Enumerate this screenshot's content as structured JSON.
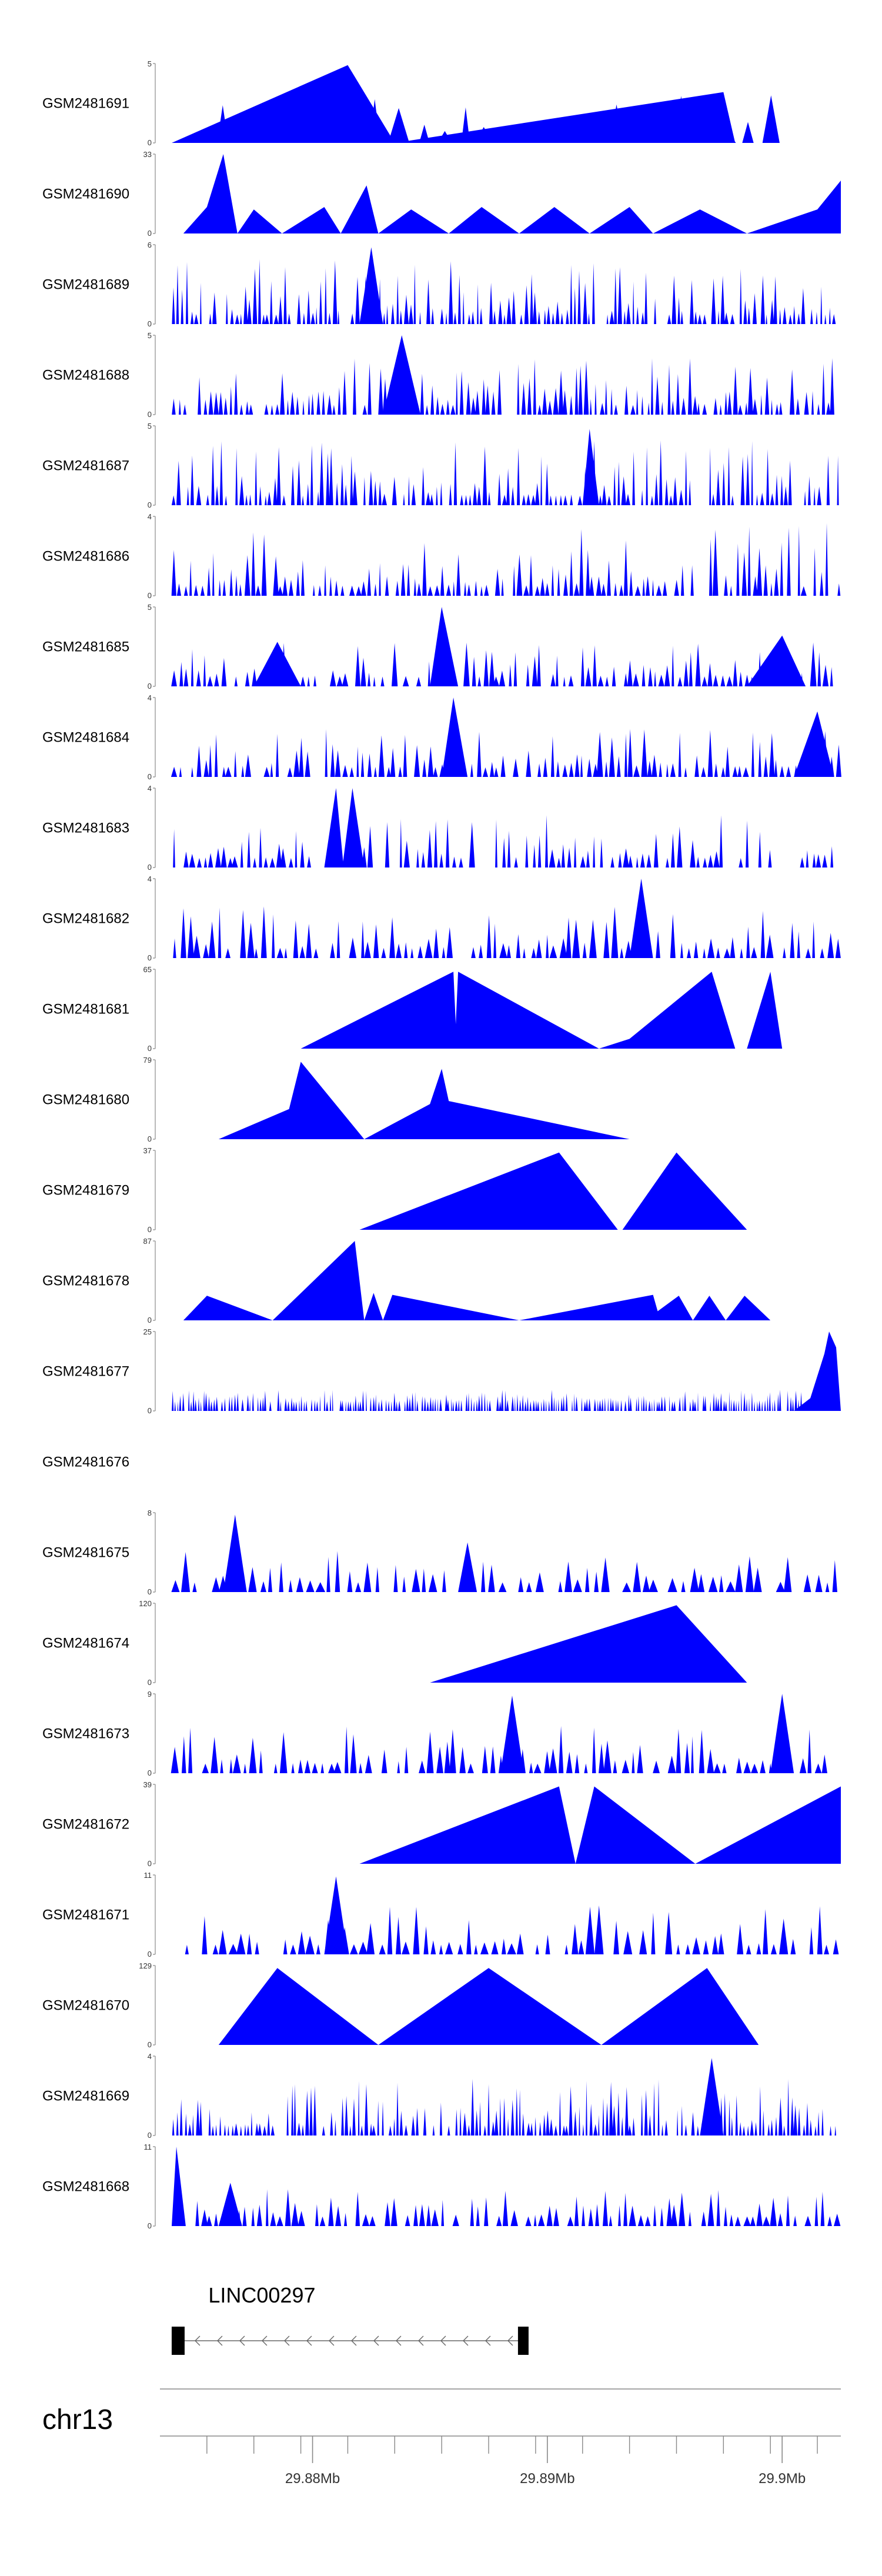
{
  "chart_data": {
    "type": "area",
    "title": "",
    "xlabel": "",
    "ylabel": "",
    "xlim": [
      29.8735,
      29.9025
    ],
    "chromosome": "chr13",
    "color": "#0000ff",
    "tracks": [
      {
        "name": "GSM2481691",
        "ymin": "0",
        "ymax": "5",
        "peak_max": 5,
        "style": "dense",
        "count": 28,
        "seed": 11,
        "hi": 0.6,
        "range": [
          29.874,
          29.9
        ],
        "anchors": [
          [
            29.874,
            0
          ],
          [
            29.8815,
            4.9
          ],
          [
            29.8835,
            0
          ],
          [
            29.8975,
            3.2
          ],
          [
            29.898,
            0
          ],
          [
            29.9,
            0
          ]
        ]
      },
      {
        "name": "GSM2481690",
        "ymin": "0",
        "ymax": "33",
        "peak_max": 33,
        "style": "sparse",
        "count": 0,
        "seed": 12,
        "hi": 0.5,
        "range": [
          29.874,
          29.9025
        ],
        "anchors": [
          [
            29.8745,
            0
          ],
          [
            29.8755,
            11
          ],
          [
            29.8762,
            33
          ],
          [
            29.8768,
            0
          ],
          [
            29.8775,
            10
          ],
          [
            29.8787,
            0
          ],
          [
            29.8805,
            11
          ],
          [
            29.8812,
            0
          ],
          [
            29.8823,
            20
          ],
          [
            29.8828,
            0
          ],
          [
            29.8842,
            10
          ],
          [
            29.8858,
            0
          ],
          [
            29.8872,
            11
          ],
          [
            29.8888,
            0
          ],
          [
            29.8903,
            11
          ],
          [
            29.8918,
            0
          ],
          [
            29.8935,
            11
          ],
          [
            29.8945,
            0
          ],
          [
            29.8965,
            10
          ],
          [
            29.8985,
            0
          ],
          [
            29.9015,
            10
          ],
          [
            29.9025,
            22
          ],
          [
            29.9025,
            0
          ]
        ]
      },
      {
        "name": "GSM2481689",
        "ymin": "0",
        "ymax": "6",
        "peak_max": 6,
        "style": "dense",
        "count": 150,
        "seed": 13,
        "hi": 0.7,
        "range": [
          29.874,
          29.9025
        ],
        "anchors": [
          [
            29.882,
            0
          ],
          [
            29.8825,
            5.8
          ],
          [
            29.883,
            0
          ]
        ]
      },
      {
        "name": "GSM2481688",
        "ymin": "0",
        "ymax": "5",
        "peak_max": 5,
        "style": "dense",
        "count": 130,
        "seed": 14,
        "hi": 0.6,
        "range": [
          29.874,
          29.9025
        ],
        "anchors": [
          [
            29.883,
            0
          ],
          [
            29.8838,
            5
          ],
          [
            29.8846,
            0
          ]
        ]
      },
      {
        "name": "GSM2481687",
        "ymin": "0",
        "ymax": "5",
        "peak_max": 5,
        "style": "dense",
        "count": 140,
        "seed": 15,
        "hi": 0.7,
        "range": [
          29.874,
          29.9025
        ],
        "anchors": [
          [
            29.8915,
            0
          ],
          [
            29.8918,
            4.8
          ],
          [
            29.8922,
            0
          ]
        ]
      },
      {
        "name": "GSM2481686",
        "ymin": "0",
        "ymax": "4",
        "peak_max": 4,
        "style": "dense",
        "count": 120,
        "seed": 16,
        "hi": 0.8,
        "range": [
          29.874,
          29.9025
        ],
        "anchors": []
      },
      {
        "name": "GSM2481685",
        "ymin": "0",
        "ymax": "5",
        "peak_max": 5,
        "style": "dense",
        "count": 110,
        "seed": 17,
        "hi": 0.45,
        "range": [
          29.874,
          29.9025
        ],
        "anchors": [
          [
            29.885,
            0
          ],
          [
            29.8855,
            5
          ],
          [
            29.8862,
            0
          ],
          [
            29.8775,
            0
          ],
          [
            29.8785,
            2.8
          ],
          [
            29.8795,
            0
          ],
          [
            29.8985,
            0
          ],
          [
            29.9,
            3.2
          ],
          [
            29.901,
            0
          ]
        ]
      },
      {
        "name": "GSM2481684",
        "ymin": "0",
        "ymax": "4",
        "peak_max": 4,
        "style": "dense",
        "count": 110,
        "seed": 18,
        "hi": 0.5,
        "range": [
          29.874,
          29.9025
        ],
        "anchors": [
          [
            29.8855,
            0
          ],
          [
            29.886,
            4
          ],
          [
            29.8866,
            0
          ],
          [
            29.9005,
            0
          ],
          [
            29.9015,
            3.3
          ],
          [
            29.9022,
            0
          ]
        ]
      },
      {
        "name": "GSM2481683",
        "ymin": "0",
        "ymax": "4",
        "peak_max": 4,
        "style": "dense",
        "count": 110,
        "seed": 19,
        "hi": 0.55,
        "range": [
          29.874,
          29.9025
        ],
        "anchors": [
          [
            29.8805,
            0
          ],
          [
            29.881,
            4
          ],
          [
            29.8813,
            0.3
          ],
          [
            29.8817,
            4
          ],
          [
            29.8822,
            0
          ]
        ]
      },
      {
        "name": "GSM2481682",
        "ymin": "0",
        "ymax": "4",
        "peak_max": 4,
        "style": "dense",
        "count": 90,
        "seed": 20,
        "hi": 0.55,
        "range": [
          29.874,
          29.9025
        ],
        "anchors": [
          [
            29.8935,
            0
          ],
          [
            29.894,
            4
          ],
          [
            29.8945,
            0
          ]
        ]
      },
      {
        "name": "GSM2481681",
        "ymin": "0",
        "ymax": "65",
        "peak_max": 65,
        "style": "sparse",
        "count": 0,
        "seed": 21,
        "hi": 0.5,
        "range": [
          29.8795,
          29.9
        ],
        "anchors": [
          [
            29.8795,
            0
          ],
          [
            29.886,
            63
          ],
          [
            29.8861,
            20
          ],
          [
            29.8862,
            63
          ],
          [
            29.8922,
            0
          ],
          [
            29.8935,
            8
          ],
          [
            29.897,
            63
          ],
          [
            29.898,
            0
          ],
          [
            29.8985,
            0
          ],
          [
            29.8995,
            63
          ],
          [
            29.9,
            0
          ]
        ]
      },
      {
        "name": "GSM2481680",
        "ymin": "0",
        "ymax": "79",
        "peak_max": 79,
        "style": "sparse",
        "count": 0,
        "seed": 22,
        "hi": 0.5,
        "range": [
          29.876,
          29.8935
        ],
        "anchors": [
          [
            29.876,
            0
          ],
          [
            29.879,
            30
          ],
          [
            29.8795,
            77
          ],
          [
            29.8822,
            0
          ],
          [
            29.885,
            35
          ],
          [
            29.8855,
            70
          ],
          [
            29.8858,
            38
          ],
          [
            29.8935,
            0
          ]
        ]
      },
      {
        "name": "GSM2481679",
        "ymin": "0",
        "ymax": "37",
        "peak_max": 37,
        "style": "sparse",
        "count": 0,
        "seed": 23,
        "hi": 0.5,
        "range": [
          29.882,
          29.8985
        ],
        "anchors": [
          [
            29.882,
            0
          ],
          [
            29.8905,
            36
          ],
          [
            29.893,
            0
          ],
          [
            29.8932,
            0
          ],
          [
            29.8955,
            36
          ],
          [
            29.8985,
            0
          ]
        ]
      },
      {
        "name": "GSM2481678",
        "ymin": "0",
        "ymax": "87",
        "peak_max": 87,
        "style": "sparse",
        "count": 0,
        "seed": 24,
        "hi": 0.5,
        "range": [
          29.8745,
          29.8995
        ],
        "anchors": [
          [
            29.8745,
            0
          ],
          [
            29.8755,
            27
          ],
          [
            29.8783,
            0
          ],
          [
            29.8818,
            87
          ],
          [
            29.8822,
            0
          ],
          [
            29.8826,
            30
          ],
          [
            29.883,
            0
          ],
          [
            29.8834,
            28
          ],
          [
            29.8888,
            0
          ],
          [
            29.8945,
            28
          ],
          [
            29.8947,
            10
          ],
          [
            29.8956,
            27
          ],
          [
            29.8962,
            0
          ],
          [
            29.8969,
            27
          ],
          [
            29.8976,
            0
          ],
          [
            29.8984,
            27
          ],
          [
            29.8995,
            0
          ]
        ]
      },
      {
        "name": "GSM2481677",
        "ymin": "0",
        "ymax": "25",
        "peak_max": 25,
        "style": "dense",
        "count": 260,
        "seed": 25,
        "hi": 0.15,
        "range": [
          29.874,
          29.9025
        ],
        "anchors": [
          [
            29.9005,
            0
          ],
          [
            29.9012,
            4
          ],
          [
            29.9018,
            18
          ],
          [
            29.902,
            25
          ],
          [
            29.9023,
            20
          ],
          [
            29.9025,
            0
          ]
        ]
      },
      {
        "name": "GSM2481676",
        "ymin": "",
        "ymax": "",
        "peak_max": 1,
        "style": "empty",
        "count": 0,
        "seed": 26,
        "hi": 0.5,
        "range": [
          29.874,
          29.9025
        ],
        "anchors": []
      },
      {
        "name": "GSM2481675",
        "ymin": "0",
        "ymax": "8",
        "peak_max": 8,
        "style": "dense",
        "count": 70,
        "seed": 27,
        "hi": 0.4,
        "range": [
          29.874,
          29.9025
        ],
        "anchors": [
          [
            29.8762,
            0
          ],
          [
            29.8767,
            7.8
          ],
          [
            29.8772,
            0
          ],
          [
            29.8862,
            0
          ],
          [
            29.8866,
            5
          ],
          [
            29.887,
            0
          ]
        ]
      },
      {
        "name": "GSM2481674",
        "ymin": "0",
        "ymax": "120",
        "peak_max": 120,
        "style": "sparse",
        "count": 0,
        "seed": 28,
        "hi": 0.5,
        "range": [
          29.885,
          29.8985
        ],
        "anchors": [
          [
            29.885,
            0
          ],
          [
            29.8955,
            117
          ],
          [
            29.8985,
            0
          ]
        ]
      },
      {
        "name": "GSM2481673",
        "ymin": "0",
        "ymax": "9",
        "peak_max": 9,
        "style": "dense",
        "count": 85,
        "seed": 29,
        "hi": 0.5,
        "range": [
          29.874,
          29.902
        ],
        "anchors": [
          [
            29.888,
            0
          ],
          [
            29.8885,
            8.8
          ],
          [
            29.889,
            0
          ],
          [
            29.8995,
            0
          ],
          [
            29.9,
            9
          ],
          [
            29.9005,
            0
          ]
        ]
      },
      {
        "name": "GSM2481672",
        "ymin": "0",
        "ymax": "39",
        "peak_max": 39,
        "style": "sparse",
        "count": 0,
        "seed": 30,
        "hi": 0.5,
        "range": [
          29.882,
          29.9025
        ],
        "anchors": [
          [
            29.882,
            0
          ],
          [
            29.8905,
            38
          ],
          [
            29.8912,
            0
          ],
          [
            29.892,
            38
          ],
          [
            29.8963,
            0
          ],
          [
            29.9025,
            38
          ],
          [
            29.9025,
            0
          ]
        ]
      },
      {
        "name": "GSM2481671",
        "ymin": "0",
        "ymax": "11",
        "peak_max": 11,
        "style": "dense",
        "count": 75,
        "seed": 31,
        "hi": 0.5,
        "range": [
          29.8745,
          29.9025
        ],
        "anchors": [
          [
            29.8805,
            0
          ],
          [
            29.881,
            10.8
          ],
          [
            29.8815,
            0
          ]
        ]
      },
      {
        "name": "GSM2481670",
        "ymin": "0",
        "ymax": "129",
        "peak_max": 129,
        "style": "sparse",
        "count": 0,
        "seed": 32,
        "hi": 0.5,
        "range": [
          29.876,
          29.899
        ],
        "anchors": [
          [
            29.876,
            0
          ],
          [
            29.8785,
            125
          ],
          [
            29.8828,
            0
          ],
          [
            29.8875,
            125
          ],
          [
            29.8923,
            0
          ],
          [
            29.8968,
            125
          ],
          [
            29.899,
            0
          ]
        ]
      },
      {
        "name": "GSM2481669",
        "ymin": "0",
        "ymax": "4",
        "peak_max": 4,
        "style": "dense",
        "count": 170,
        "seed": 33,
        "hi": 0.6,
        "range": [
          29.874,
          29.9025
        ],
        "anchors": [
          [
            29.8965,
            0
          ],
          [
            29.897,
            3.9
          ],
          [
            29.8975,
            0
          ]
        ]
      },
      {
        "name": "GSM2481668",
        "ymin": "0",
        "ymax": "11",
        "peak_max": 11,
        "style": "dense",
        "count": 95,
        "seed": 34,
        "hi": 0.35,
        "range": [
          29.874,
          29.9025
        ],
        "anchors": [
          [
            29.874,
            0
          ],
          [
            29.8742,
            11
          ],
          [
            29.8746,
            0
          ],
          [
            29.876,
            0
          ],
          [
            29.8765,
            6
          ],
          [
            29.877,
            0
          ]
        ]
      }
    ],
    "gene": {
      "name": "LINC00297",
      "start": 29.874,
      "end": 29.8892,
      "strand": "-",
      "exons": [
        [
          29.874,
          29.8746
        ],
        [
          29.8886,
          29.8892
        ]
      ]
    },
    "x_axis": {
      "major_ticks": [
        29.88,
        29.89,
        29.9
      ],
      "major_labels": [
        "29.88Mb",
        "29.89Mb",
        "29.9Mb"
      ],
      "minor_ticks": [
        29.8755,
        29.8775,
        29.8795,
        29.8815,
        29.8835,
        29.8855,
        29.8875,
        29.8895,
        29.8915,
        29.8935,
        29.8955,
        29.8975,
        29.8995,
        29.9015
      ]
    }
  }
}
